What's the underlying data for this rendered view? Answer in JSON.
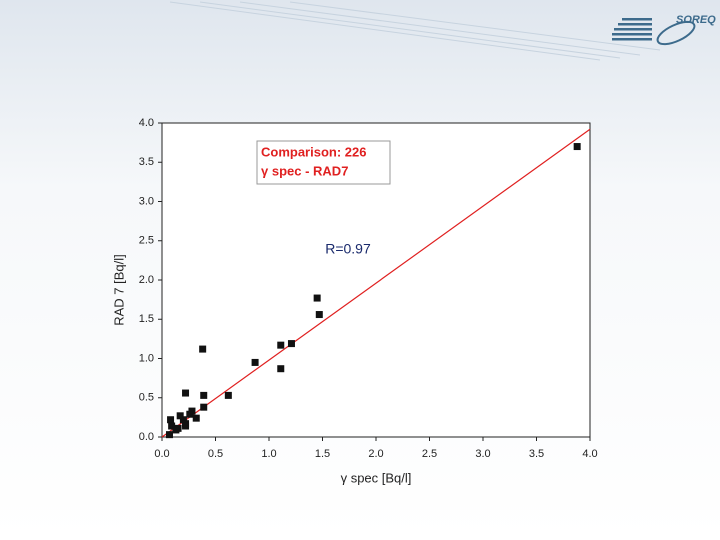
{
  "logo": "SOREQ",
  "chart_data": {
    "type": "scatter",
    "xlabel": "γ spec [Bq/l]",
    "ylabel": "RAD 7 [Bq/l]",
    "legend_lines": [
      "Comparison: 226",
      "γ spec - RAD7"
    ],
    "annotation": "R=0.97",
    "xlim": [
      0,
      4
    ],
    "ylim": [
      0,
      4
    ],
    "xticks": [
      {
        "value": 0,
        "label": "0.0"
      },
      0.5,
      {
        "value": 1,
        "label": "1.0"
      },
      1.5,
      {
        "value": 2,
        "label": "2.0"
      },
      2.5,
      {
        "value": 3,
        "label": "3.0"
      },
      3.5,
      {
        "value": 4,
        "label": "4.0"
      }
    ],
    "yticks": [
      {
        "value": 0,
        "label": "0.0"
      },
      0.5,
      {
        "value": 1,
        "label": "1.0"
      },
      1.5,
      {
        "value": 2,
        "label": "2.0"
      },
      2.5,
      {
        "value": 3,
        "label": "3.0"
      },
      3.5,
      {
        "value": 4,
        "label": "4.0"
      }
    ],
    "series": [
      {
        "color": "#111111",
        "x": [
          3.88,
          1.45,
          1.47,
          1.11,
          1.21,
          0.38,
          0.87,
          1.11,
          0.22,
          0.39,
          0.62,
          0.39,
          0.08,
          0.09,
          0.15,
          0.2,
          0.22,
          0.26,
          0.32,
          0.28,
          0.17,
          0.13,
          0.07,
          0.22
        ],
        "values": [
          3.7,
          1.77,
          1.56,
          1.17,
          1.19,
          1.12,
          0.95,
          0.87,
          0.56,
          0.53,
          0.53,
          0.38,
          0.22,
          0.14,
          0.11,
          0.22,
          0.17,
          0.29,
          0.24,
          0.33,
          0.27,
          0.09,
          0.03,
          0.14
        ]
      }
    ],
    "fit_line": {
      "color": "#e02020",
      "x": [
        0,
        4
      ],
      "values": [
        0,
        3.92
      ]
    }
  }
}
